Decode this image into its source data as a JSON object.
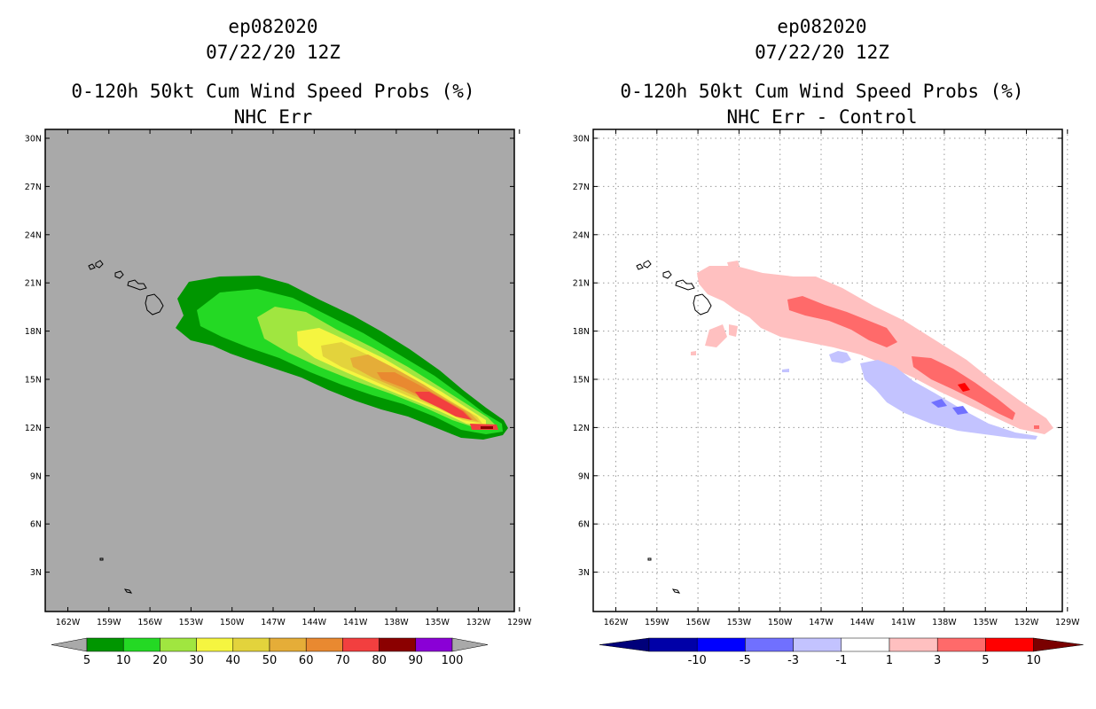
{
  "left_panel": {
    "title_line1": "ep082020",
    "title_line2": "07/22/20 12Z",
    "title_line3": "0-120h 50kt Cum Wind Speed Probs (%)",
    "title_line4": "NHC Err",
    "background_color": "#a9a9a9",
    "colorbar": {
      "labels": [
        "5",
        "10",
        "20",
        "30",
        "40",
        "50",
        "60",
        "70",
        "80",
        "90",
        "100"
      ],
      "colors": [
        "#009600",
        "#24d924",
        "#a0e640",
        "#f5f540",
        "#e3d33c",
        "#e5ad38",
        "#e98930",
        "#f23f3f",
        "#8b0000",
        "#8a00d6"
      ],
      "end_color": "#a9a9a9"
    }
  },
  "right_panel": {
    "title_line1": "ep082020",
    "title_line2": "07/22/20 12Z",
    "title_line3": "0-120h 50kt Cum Wind Speed Probs (%)",
    "title_line4": "NHC Err - Control",
    "background_color": "#ffffff",
    "colorbar": {
      "labels": [
        "-10",
        "-5",
        "-3",
        "-1",
        "1",
        "3",
        "5",
        "10"
      ],
      "colors": [
        "#0000a8",
        "#0000ff",
        "#7070ff",
        "#c3c3ff",
        "#ffffff",
        "#ffc0c0",
        "#ff6a6a",
        "#ff0000"
      ],
      "low_end_color": "#00007a",
      "high_end_color": "#7a0000"
    }
  },
  "axes": {
    "lon_labels": [
      "162W",
      "159W",
      "156W",
      "153W",
      "150W",
      "147W",
      "144W",
      "141W",
      "138W",
      "135W",
      "132W",
      "129W"
    ],
    "lat_labels": [
      "30N",
      "27N",
      "24N",
      "21N",
      "18N",
      "15N",
      "12N",
      "9N",
      "6N",
      "3N"
    ]
  },
  "colors": {
    "prob_5": "#009600",
    "prob_10": "#24d924",
    "prob_20": "#a0e640",
    "prob_30": "#f5f540",
    "prob_40": "#e3d33c",
    "prob_50": "#e5ad38",
    "prob_60": "#e98930",
    "prob_70": "#f23f3f",
    "prob_80": "#8b0000",
    "diff_pos_1": "#ffc0c0",
    "diff_pos_3": "#ff6a6a",
    "diff_pos_5": "#ff0000",
    "diff_neg_1": "#c3c3ff",
    "diff_neg_3": "#7070ff"
  }
}
